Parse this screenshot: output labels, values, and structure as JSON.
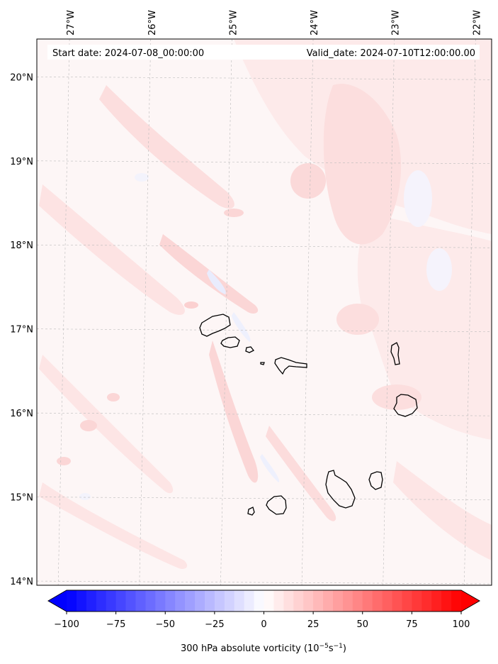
{
  "map": {
    "start_date_text": "Start date: 2024-07-08_00:00:00",
    "valid_date_text": "Valid_date: 2024-07-10T12:00:00.00",
    "extent": {
      "lon_min": -27.35,
      "lon_max": -21.75,
      "lat_min": 13.95,
      "lat_max": 20.45
    },
    "lon_ticks": [
      {
        "value": -27,
        "label": "27°W"
      },
      {
        "value": -26,
        "label": "26°W"
      },
      {
        "value": -25,
        "label": "25°W"
      },
      {
        "value": -24,
        "label": "24°W"
      },
      {
        "value": -23,
        "label": "23°W"
      },
      {
        "value": -22,
        "label": "22°W"
      }
    ],
    "lat_ticks": [
      {
        "value": 20,
        "label": "20°N"
      },
      {
        "value": 19,
        "label": "19°N"
      },
      {
        "value": 18,
        "label": "18°N"
      },
      {
        "value": 17,
        "label": "17°N"
      },
      {
        "value": 16,
        "label": "16°N"
      },
      {
        "value": 15,
        "label": "15°N"
      },
      {
        "value": 14,
        "label": "14°N"
      }
    ],
    "gridlines": true,
    "field_colors": {
      "background": "#fdf6f6",
      "light_pink": "#fde9e9",
      "medium_pink": "#fbd9d9",
      "light_blue": "#eef0fd"
    },
    "coastline_color": "#000000"
  },
  "colorbar": {
    "label_prefix": "300 hPa absolute vorticity (10",
    "label_exp1": "−5",
    "label_mid": "s",
    "label_exp2": "−1",
    "label_suffix": ")",
    "min": -100,
    "max": 100,
    "step": 5,
    "extend": "both",
    "colormap": "bwr",
    "ticks": [
      {
        "value": -100,
        "label": "−100"
      },
      {
        "value": -75,
        "label": "−75"
      },
      {
        "value": -50,
        "label": "−50"
      },
      {
        "value": -25,
        "label": "−25"
      },
      {
        "value": 0,
        "label": "0"
      },
      {
        "value": 25,
        "label": "25"
      },
      {
        "value": 50,
        "label": "50"
      },
      {
        "value": 75,
        "label": "75"
      },
      {
        "value": 100,
        "label": "100"
      }
    ]
  }
}
